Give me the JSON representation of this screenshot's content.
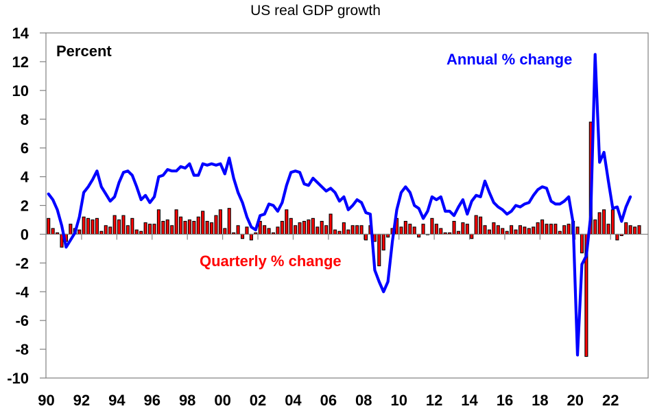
{
  "chart_data": {
    "type": "bar+line",
    "title": "US real GDP growth",
    "ylabel": "Percent",
    "xlabel": "",
    "ylim": [
      -10,
      14
    ],
    "yticks": [
      -10,
      -8,
      -6,
      -4,
      -2,
      0,
      2,
      4,
      6,
      8,
      10,
      12,
      14
    ],
    "ytick_labels": [
      "-10",
      "-8",
      "-6",
      "-4",
      "-2",
      "0",
      "2",
      "4",
      "6",
      "8",
      "10",
      "12",
      "14"
    ],
    "xtick_labels": [
      "90",
      "92",
      "94",
      "96",
      "98",
      "00",
      "02",
      "04",
      "06",
      "08",
      "10",
      "12",
      "14",
      "16",
      "18",
      "20",
      "22"
    ],
    "x_start": "1990Q1",
    "x_end": "2023Q2",
    "grid": false,
    "annotations": [
      {
        "text": "Annual % change",
        "series": "annual",
        "color": "#0000ff"
      },
      {
        "text": "Quarterly % change",
        "series": "quarterly",
        "color": "#ff0000"
      },
      {
        "text": "Percent",
        "color": "#000000"
      }
    ],
    "series": [
      {
        "name": "Quarterly % change",
        "type": "bar",
        "color": "#ff0000",
        "values": [
          1.1,
          0.4,
          0.1,
          -0.9,
          -0.5,
          0.7,
          0.4,
          0.3,
          1.2,
          1.1,
          1.0,
          1.1,
          0.2,
          0.6,
          0.5,
          1.3,
          1.0,
          1.3,
          0.6,
          1.1,
          0.3,
          0.2,
          0.8,
          0.7,
          0.7,
          1.7,
          0.9,
          1.0,
          0.6,
          1.7,
          1.2,
          0.9,
          1.0,
          0.9,
          1.2,
          1.6,
          0.9,
          0.8,
          1.3,
          1.7,
          0.4,
          1.8,
          0.1,
          0.6,
          -0.3,
          0.5,
          -0.4,
          0.1,
          0.9,
          0.6,
          0.4,
          0.1,
          0.5,
          0.9,
          1.7,
          1.1,
          0.6,
          0.8,
          0.9,
          1.0,
          1.1,
          0.5,
          0.9,
          0.6,
          1.4,
          0.3,
          0.2,
          0.8,
          0.3,
          0.6,
          0.6,
          0.6,
          -0.4,
          0.6,
          -0.5,
          -2.2,
          -1.1,
          -0.2,
          0.4,
          1.1,
          0.5,
          0.9,
          0.7,
          0.5,
          -0.2,
          0.7,
          0.0,
          1.1,
          0.7,
          0.4,
          0.1,
          0.1,
          0.9,
          0.2,
          0.8,
          0.7,
          -0.3,
          1.3,
          1.2,
          0.6,
          0.3,
          0.8,
          0.6,
          0.4,
          0.2,
          0.6,
          0.3,
          0.6,
          0.5,
          0.4,
          0.5,
          0.8,
          1.0,
          0.7,
          0.7,
          0.7,
          0.2,
          0.6,
          0.7,
          0.9,
          0.5,
          -1.3,
          -8.5,
          7.8,
          1.0,
          1.5,
          1.7,
          0.7,
          1.7,
          -0.4,
          -0.1,
          0.8,
          0.6,
          0.5,
          0.6
        ]
      },
      {
        "name": "Annual % change",
        "type": "line",
        "color": "#0000ff",
        "values": [
          2.8,
          2.4,
          1.7,
          0.6,
          -0.9,
          -0.4,
          0.1,
          1.2,
          2.9,
          3.3,
          3.8,
          4.4,
          3.3,
          2.8,
          2.3,
          2.6,
          3.6,
          4.3,
          4.4,
          4.1,
          3.3,
          2.4,
          2.7,
          2.2,
          2.6,
          4.0,
          4.1,
          4.5,
          4.4,
          4.4,
          4.7,
          4.6,
          4.9,
          4.1,
          4.1,
          4.9,
          4.8,
          4.9,
          4.8,
          4.9,
          4.2,
          5.3,
          3.9,
          2.9,
          2.2,
          1.2,
          0.5,
          0.3,
          1.3,
          1.4,
          2.1,
          2.0,
          1.6,
          2.2,
          3.4,
          4.3,
          4.4,
          4.3,
          3.5,
          3.4,
          3.9,
          3.6,
          3.3,
          3.0,
          3.2,
          2.9,
          2.3,
          2.6,
          1.7,
          2.0,
          2.4,
          2.2,
          1.5,
          1.4,
          -2.5,
          -3.3,
          -4.0,
          -3.3,
          -0.5,
          1.7,
          2.9,
          3.3,
          2.9,
          2.0,
          1.8,
          1.1,
          1.6,
          2.6,
          2.4,
          2.6,
          1.6,
          1.6,
          1.3,
          1.9,
          2.4,
          1.4,
          2.3,
          2.7,
          2.6,
          3.7,
          2.9,
          2.2,
          1.9,
          1.7,
          1.4,
          1.6,
          2.0,
          1.9,
          2.1,
          2.2,
          2.7,
          3.1,
          3.3,
          3.2,
          2.3,
          2.1,
          2.1,
          2.3,
          2.6,
          0.8,
          -8.4,
          -2.1,
          -1.5,
          1.3,
          12.5,
          5.0,
          5.7,
          3.7,
          1.8,
          1.9,
          0.9,
          1.9,
          2.6
        ]
      }
    ]
  }
}
